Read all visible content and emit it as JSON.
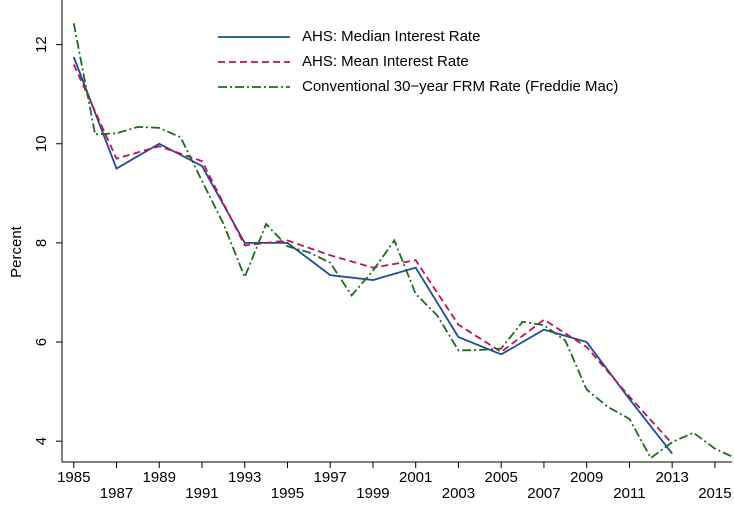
{
  "chart_data": {
    "type": "line",
    "y_label": "Percent",
    "xlim": [
      1984.45,
      2015.8
    ],
    "ylim": [
      3.58,
      12.9
    ],
    "xticks": [
      1985,
      1987,
      1989,
      1991,
      1993,
      1995,
      1997,
      1999,
      2001,
      2003,
      2005,
      2007,
      2009,
      2011,
      2013,
      2015
    ],
    "yticks": [
      4,
      6,
      8,
      10,
      12
    ],
    "series": [
      {
        "name": "AHS: Median Interest Rate",
        "color": "#1a4d99",
        "dash": "",
        "x": [
          1985,
          1987,
          1989,
          1991,
          1993,
          1995,
          1997,
          1999,
          2001,
          2003,
          2005,
          2007,
          2009,
          2011,
          2013
        ],
        "values": [
          11.75,
          9.5,
          10.0,
          9.55,
          8.0,
          8.0,
          7.35,
          7.25,
          7.5,
          6.1,
          5.75,
          6.25,
          6.0,
          4.85,
          3.75
        ]
      },
      {
        "name": "AHS: Mean Interest Rate",
        "color": "#c0124f",
        "dash": "7 4",
        "x": [
          1985,
          1987,
          1989,
          1991,
          1993,
          1995,
          1997,
          1999,
          2001,
          2003,
          2005,
          2007,
          2009,
          2011,
          2013
        ],
        "values": [
          11.6,
          9.7,
          9.95,
          9.65,
          7.95,
          8.05,
          7.75,
          7.5,
          7.65,
          6.35,
          5.8,
          6.45,
          5.9,
          4.9,
          3.95
        ]
      },
      {
        "name": "Conventional 30−year FRM Rate (Freddie Mac)",
        "color": "#1e6b1e",
        "dash": "9 3 2 3",
        "x": [
          1985,
          1986,
          1987,
          1988,
          1989,
          1990,
          1991,
          1992,
          1993,
          1994,
          1995,
          1996,
          1997,
          1998,
          1999,
          2000,
          2001,
          2002,
          2003,
          2004,
          2005,
          2006,
          2007,
          2008,
          2009,
          2010,
          2011,
          2012,
          2013,
          2014,
          2015,
          2016
        ],
        "values": [
          12.43,
          10.19,
          10.21,
          10.34,
          10.32,
          10.13,
          9.25,
          8.39,
          7.31,
          8.38,
          7.93,
          7.81,
          7.6,
          6.94,
          7.44,
          8.05,
          6.97,
          6.54,
          5.83,
          5.84,
          5.87,
          6.41,
          6.34,
          6.03,
          5.04,
          4.69,
          4.45,
          3.66,
          3.98,
          4.17,
          3.85,
          3.65
        ]
      }
    ]
  }
}
